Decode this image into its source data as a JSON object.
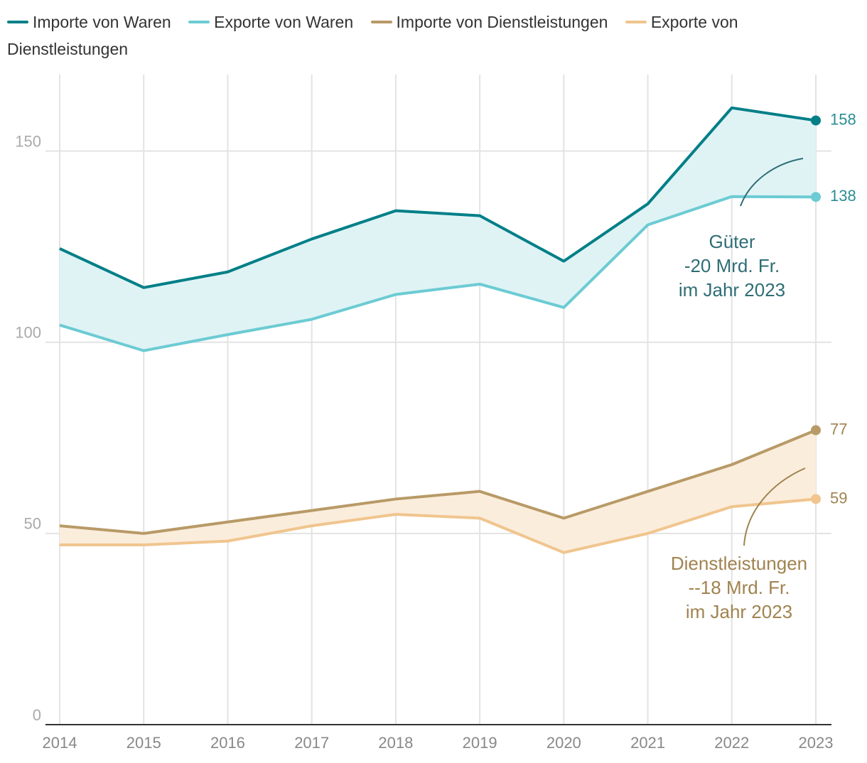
{
  "chart_data": {
    "type": "line",
    "categories": [
      "2014",
      "2015",
      "2016",
      "2017",
      "2018",
      "2019",
      "2020",
      "2021",
      "2022",
      "2023"
    ],
    "series": [
      {
        "name": "Importe von Waren",
        "color": "#007f87",
        "values": [
          124.5,
          114.3,
          118.4,
          127,
          134.4,
          133.1,
          121.2,
          136.2,
          161.3,
          158
        ]
      },
      {
        "name": "Exporte von Waren",
        "color": "#6ccbd3",
        "values": [
          104.5,
          97.8,
          102,
          106,
          112.5,
          115.2,
          109.1,
          130.7,
          138.1,
          138
        ]
      },
      {
        "name": "Importe von Dienstleistungen",
        "color": "#b89a67",
        "values": [
          52,
          50,
          53,
          56,
          59,
          61,
          54,
          61,
          68,
          77
        ]
      },
      {
        "name": "Exporte von Dienstleistungen",
        "color": "#f0c58e",
        "values": [
          47,
          47,
          48,
          52,
          55,
          54,
          45,
          50,
          57,
          59
        ]
      }
    ],
    "bands": [
      {
        "between": [
          0,
          1
        ],
        "color": "#dff3f5"
      },
      {
        "between": [
          2,
          3
        ],
        "color": "#fbeddc"
      }
    ],
    "ylim": [
      0,
      170
    ],
    "yticks": [
      0,
      50,
      100,
      150
    ],
    "grid": true,
    "annotations": [
      {
        "lines": [
          "Güter",
          "-20 Mrd. Fr.",
          "im Jahr 2023"
        ],
        "color": "#2f6e75"
      },
      {
        "lines": [
          "Dienstleistungen",
          "--18 Mrd. Fr.",
          "im Jahr 2023"
        ],
        "color": "#a08350"
      }
    ]
  }
}
